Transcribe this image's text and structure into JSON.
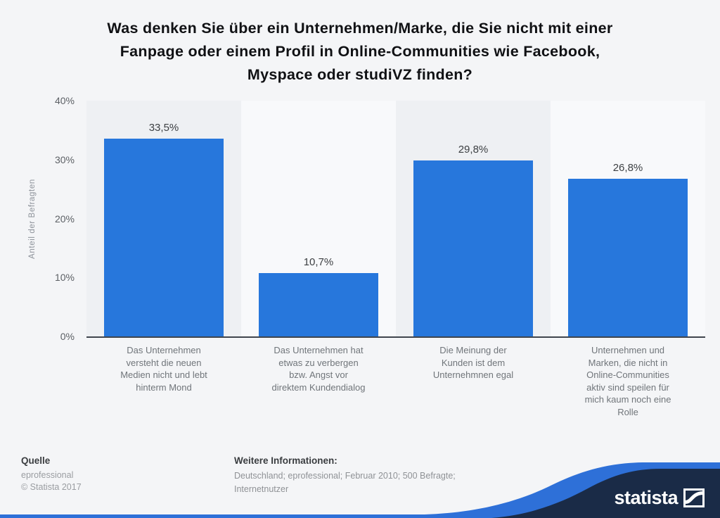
{
  "page": {
    "background": "#f4f5f7",
    "accent_blue": "#2e70d8",
    "navy": "#1a2b47"
  },
  "chart_data": {
    "type": "bar",
    "title": "Was denken Sie über ein Unternehmen/Marke, die Sie nicht mit einer Fanpage oder einem Profil in Online-Communities wie Facebook, Myspace oder studiVZ finden?",
    "title_lines": [
      "Was denken Sie über ein Unternehmen/Marke, die Sie nicht mit einer",
      "Fanpage oder einem Profil in Online-Communities wie Facebook,",
      "Myspace oder studiVZ finden?"
    ],
    "ylabel": "Anteil der Befragten",
    "xlabel": "",
    "ylim": [
      0,
      40
    ],
    "yticks": [
      {
        "value": 0,
        "label": "0%"
      },
      {
        "value": 10,
        "label": "10%"
      },
      {
        "value": 20,
        "label": "20%"
      },
      {
        "value": 30,
        "label": "30%"
      },
      {
        "value": 40,
        "label": "40%"
      }
    ],
    "grid": true,
    "legend": "none",
    "categories": [
      "Das Unternehmen versteht die neuen Medien nicht und lebt hinterm Mond",
      "Das Unternehmen hat etwas zu verbergen bzw. Angst vor direktem Kundendialog",
      "Die Meinung der Kunden ist dem Unternehmnen egal",
      "Unternehmen und Marken, die nicht in Online-Communities aktiv sind speilen für mich kaum noch eine Rolle"
    ],
    "category_lines": [
      [
        "Das Unternehmen",
        "versteht die neuen",
        "Medien nicht und lebt",
        "hinterm Mond"
      ],
      [
        "Das Unternehmen hat",
        "etwas zu verbergen",
        "bzw. Angst vor",
        "direktem Kundendialog"
      ],
      [
        "Die Meinung der",
        "Kunden ist dem",
        "Unternehmnen egal"
      ],
      [
        "Unternehmen und",
        "Marken, die nicht in",
        "Online-Communities",
        "aktiv sind speilen für",
        "mich kaum noch eine",
        "Rolle"
      ]
    ],
    "values": [
      33.5,
      10.7,
      29.8,
      26.8
    ],
    "value_labels": [
      "33,5%",
      "10,7%",
      "29,8%",
      "26,8%"
    ],
    "bar_color": "#2777dc",
    "band_colors": [
      "#eef0f3",
      "#f8f9fb"
    ]
  },
  "footer": {
    "source": {
      "heading": "Quelle",
      "lines": [
        "eprofessional",
        "© Statista 2017"
      ]
    },
    "info": {
      "heading": "Weitere Informationen:",
      "lines": [
        "Deutschland; eprofessional; Februar 2010; 500 Befragte;",
        "Internetnutzer"
      ]
    }
  },
  "brand": {
    "logo_text": "statista",
    "logo_icon": "statista-square-icon"
  }
}
